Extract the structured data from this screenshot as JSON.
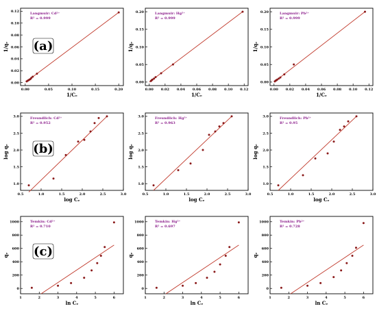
{
  "row_labels": [
    "(a)",
    "(b)",
    "(c)"
  ],
  "chart_data": [
    {
      "type": "scatter",
      "row": 0,
      "col": 0,
      "title": "Langmuir: Cd²⁺",
      "r2": "R² = 0.999",
      "xlabel": "1/Cₑ",
      "ylabel": "1/qₑ",
      "xlim": [
        -0.01,
        0.21
      ],
      "ylim": [
        -0.005,
        0.125
      ],
      "xticks": [
        {
          "v": 0.0,
          "t": "0.00"
        },
        {
          "v": 0.05,
          "t": "0.05"
        },
        {
          "v": 0.1,
          "t": "0.10"
        },
        {
          "v": 0.15,
          "t": "0.15"
        },
        {
          "v": 0.2,
          "t": "0.20"
        }
      ],
      "yticks": [
        {
          "v": 0.0,
          "t": "0.00"
        },
        {
          "v": 0.02,
          "t": "0.02"
        },
        {
          "v": 0.04,
          "t": "0.04"
        },
        {
          "v": 0.06,
          "t": "0.06"
        },
        {
          "v": 0.08,
          "t": "0.08"
        },
        {
          "v": 0.1,
          "t": "0.10"
        },
        {
          "v": 0.12,
          "t": "0.12"
        }
      ],
      "x": [
        0.003,
        0.005,
        0.007,
        0.009,
        0.011,
        0.013,
        0.016,
        0.025,
        0.2
      ],
      "y": [
        0.002,
        0.003,
        0.004,
        0.005,
        0.006,
        0.008,
        0.01,
        0.015,
        0.118
      ],
      "fit": [
        [
          0.003,
          0.002
        ],
        [
          0.2,
          0.118
        ]
      ]
    },
    {
      "type": "scatter",
      "row": 0,
      "col": 1,
      "title": "Langmuir: Hg²⁺",
      "r2": "R² = 0.999",
      "xlabel": "1/Cₑ",
      "ylabel": "1/qₑ",
      "xlim": [
        -0.005,
        0.125
      ],
      "ylim": [
        -0.01,
        0.21
      ],
      "xticks": [
        {
          "v": 0.0,
          "t": "0.00"
        },
        {
          "v": 0.02,
          "t": "0.02"
        },
        {
          "v": 0.04,
          "t": "0.04"
        },
        {
          "v": 0.06,
          "t": "0.06"
        },
        {
          "v": 0.08,
          "t": "0.08"
        },
        {
          "v": 0.1,
          "t": "0.10"
        },
        {
          "v": 0.12,
          "t": "0.12"
        }
      ],
      "yticks": [
        {
          "v": 0.0,
          "t": "0.00"
        },
        {
          "v": 0.05,
          "t": "0.05"
        },
        {
          "v": 0.1,
          "t": "0.10"
        },
        {
          "v": 0.15,
          "t": "0.15"
        },
        {
          "v": 0.2,
          "t": "0.20"
        }
      ],
      "x": [
        0.002,
        0.003,
        0.004,
        0.006,
        0.008,
        0.015,
        0.03,
        0.118
      ],
      "y": [
        0.003,
        0.005,
        0.007,
        0.01,
        0.014,
        0.025,
        0.05,
        0.2
      ],
      "fit": [
        [
          0.0,
          0.0
        ],
        [
          0.118,
          0.2
        ]
      ]
    },
    {
      "type": "scatter",
      "row": 0,
      "col": 2,
      "title": "Langmuir: Pb²⁺",
      "r2": "R² = 0.999",
      "xlabel": "1/Cₑ",
      "ylabel": "1/qₑ",
      "xlim": [
        -0.005,
        0.125
      ],
      "ylim": [
        -0.01,
        0.21
      ],
      "xticks": [
        {
          "v": 0.0,
          "t": "0.00"
        },
        {
          "v": 0.02,
          "t": "0.02"
        },
        {
          "v": 0.04,
          "t": "0.04"
        },
        {
          "v": 0.06,
          "t": "0.06"
        },
        {
          "v": 0.08,
          "t": "0.08"
        },
        {
          "v": 0.1,
          "t": "0.10"
        },
        {
          "v": 0.12,
          "t": "0.12"
        }
      ],
      "yticks": [
        {
          "v": 0.0,
          "t": "0.00"
        },
        {
          "v": 0.05,
          "t": "0.05"
        },
        {
          "v": 0.1,
          "t": "0.10"
        },
        {
          "v": 0.15,
          "t": "0.15"
        },
        {
          "v": 0.2,
          "t": "0.20"
        }
      ],
      "x": [
        0.001,
        0.002,
        0.003,
        0.004,
        0.006,
        0.008,
        0.013,
        0.025,
        0.115
      ],
      "y": [
        0.002,
        0.004,
        0.005,
        0.007,
        0.01,
        0.013,
        0.022,
        0.05,
        0.2
      ],
      "fit": [
        [
          0.0,
          0.0
        ],
        [
          0.115,
          0.2
        ]
      ]
    },
    {
      "type": "scatter",
      "row": 1,
      "col": 0,
      "title": "Freundlich: Cd²⁺",
      "r2": "R² = 0.952",
      "xlabel": "log Cₑ",
      "ylabel": "log qₑ",
      "xlim": [
        0.5,
        3.0
      ],
      "ylim": [
        0.8,
        3.1
      ],
      "xticks": [
        {
          "v": 0.5,
          "t": "0.5"
        },
        {
          "v": 1.0,
          "t": "1.0"
        },
        {
          "v": 1.5,
          "t": "1.5"
        },
        {
          "v": 2.0,
          "t": "2.0"
        },
        {
          "v": 2.5,
          "t": "2.5"
        },
        {
          "v": 3.0,
          "t": "3.0"
        }
      ],
      "yticks": [
        {
          "v": 1.0,
          "t": "1.0"
        },
        {
          "v": 1.5,
          "t": "1.5"
        },
        {
          "v": 2.0,
          "t": "2.0"
        },
        {
          "v": 2.5,
          "t": "2.5"
        },
        {
          "v": 3.0,
          "t": "3.0"
        }
      ],
      "x": [
        0.7,
        1.3,
        1.6,
        1.9,
        2.05,
        2.2,
        2.3,
        2.4,
        2.6
      ],
      "y": [
        0.95,
        1.15,
        1.85,
        2.25,
        2.3,
        2.55,
        2.8,
        2.95,
        3.0
      ],
      "fit": [
        [
          0.7,
          0.75
        ],
        [
          2.6,
          3.0
        ]
      ]
    },
    {
      "type": "scatter",
      "row": 1,
      "col": 1,
      "title": "Freundlich: Hg²⁺",
      "r2": "R² = 0.963",
      "xlabel": "log Cₑ",
      "ylabel": "log qₑ",
      "xlim": [
        0.5,
        3.0
      ],
      "ylim": [
        0.8,
        3.1
      ],
      "xticks": [
        {
          "v": 0.5,
          "t": "0.5"
        },
        {
          "v": 1.0,
          "t": "1.0"
        },
        {
          "v": 1.5,
          "t": "1.5"
        },
        {
          "v": 2.0,
          "t": "2.0"
        },
        {
          "v": 2.5,
          "t": "2.5"
        },
        {
          "v": 3.0,
          "t": "3.0"
        }
      ],
      "yticks": [
        {
          "v": 1.0,
          "t": "1.0"
        },
        {
          "v": 1.5,
          "t": "1.5"
        },
        {
          "v": 2.0,
          "t": "2.0"
        },
        {
          "v": 2.5,
          "t": "2.5"
        },
        {
          "v": 3.0,
          "t": "3.0"
        }
      ],
      "x": [
        0.7,
        1.3,
        1.6,
        1.9,
        2.05,
        2.2,
        2.3,
        2.4,
        2.6
      ],
      "y": [
        0.95,
        1.4,
        1.6,
        2.0,
        2.45,
        2.55,
        2.7,
        2.8,
        3.0
      ],
      "fit": [
        [
          0.7,
          0.8
        ],
        [
          2.6,
          3.0
        ]
      ]
    },
    {
      "type": "scatter",
      "row": 1,
      "col": 2,
      "title": "Freundlich: Pb²⁺",
      "r2": "R² = 0.95",
      "xlabel": "log Cₑ",
      "ylabel": "log qₑ",
      "xlim": [
        0.5,
        3.0
      ],
      "ylim": [
        0.8,
        3.1
      ],
      "xticks": [
        {
          "v": 0.5,
          "t": "0.5"
        },
        {
          "v": 1.0,
          "t": "1.0"
        },
        {
          "v": 1.5,
          "t": "1.5"
        },
        {
          "v": 2.0,
          "t": "2.0"
        },
        {
          "v": 2.5,
          "t": "2.5"
        },
        {
          "v": 3.0,
          "t": "3.0"
        }
      ],
      "yticks": [
        {
          "v": 1.0,
          "t": "1.0"
        },
        {
          "v": 1.5,
          "t": "1.5"
        },
        {
          "v": 2.0,
          "t": "2.0"
        },
        {
          "v": 2.5,
          "t": "2.5"
        },
        {
          "v": 3.0,
          "t": "3.0"
        }
      ],
      "x": [
        0.7,
        1.3,
        1.6,
        1.9,
        2.05,
        2.2,
        2.3,
        2.4,
        2.6
      ],
      "y": [
        0.95,
        1.25,
        1.75,
        1.9,
        2.25,
        2.6,
        2.7,
        2.85,
        3.0
      ],
      "fit": [
        [
          0.7,
          0.8
        ],
        [
          2.6,
          3.0
        ]
      ]
    },
    {
      "type": "scatter",
      "row": 2,
      "col": 0,
      "title": "Temkin: Cd²⁺",
      "r2": "R² = 0.710",
      "xlabel": "ln Cₑ",
      "ylabel": "qₑ",
      "xlim": [
        1,
        6.5
      ],
      "ylim": [
        -80,
        1080
      ],
      "xticks": [
        {
          "v": 1,
          "t": "1"
        },
        {
          "v": 2,
          "t": "2"
        },
        {
          "v": 3,
          "t": "3"
        },
        {
          "v": 4,
          "t": "4"
        },
        {
          "v": 5,
          "t": "5"
        },
        {
          "v": 6,
          "t": "6"
        }
      ],
      "yticks": [
        {
          "v": 0,
          "t": "0"
        },
        {
          "v": 200,
          "t": "200"
        },
        {
          "v": 400,
          "t": "400"
        },
        {
          "v": 600,
          "t": "600"
        },
        {
          "v": 800,
          "t": "800"
        },
        {
          "v": 1000,
          "t": "1000"
        }
      ],
      "x": [
        1.6,
        3.0,
        3.7,
        4.4,
        4.8,
        5.1,
        5.3,
        5.5,
        6.0
      ],
      "y": [
        10,
        40,
        80,
        160,
        270,
        380,
        490,
        620,
        990
      ],
      "fit": [
        [
          2.1,
          -80
        ],
        [
          6.0,
          650
        ]
      ]
    },
    {
      "type": "scatter",
      "row": 2,
      "col": 1,
      "title": "Temkin: Hg²⁺",
      "r2": "R² = 0.697",
      "xlabel": "ln Cₑ",
      "ylabel": "qₑ",
      "xlim": [
        1,
        6.5
      ],
      "ylim": [
        -80,
        1080
      ],
      "xticks": [
        {
          "v": 1,
          "t": "1"
        },
        {
          "v": 2,
          "t": "2"
        },
        {
          "v": 3,
          "t": "3"
        },
        {
          "v": 4,
          "t": "4"
        },
        {
          "v": 5,
          "t": "5"
        },
        {
          "v": 6,
          "t": "6"
        }
      ],
      "yticks": [
        {
          "v": 0,
          "t": "0"
        },
        {
          "v": 200,
          "t": "200"
        },
        {
          "v": 400,
          "t": "400"
        },
        {
          "v": 600,
          "t": "600"
        },
        {
          "v": 800,
          "t": "800"
        },
        {
          "v": 1000,
          "t": "1000"
        }
      ],
      "x": [
        1.6,
        3.0,
        3.7,
        4.3,
        4.7,
        5.0,
        5.3,
        5.5,
        6.0
      ],
      "y": [
        10,
        40,
        80,
        160,
        250,
        360,
        490,
        620,
        990
      ],
      "fit": [
        [
          2.1,
          -80
        ],
        [
          6.0,
          650
        ]
      ]
    },
    {
      "type": "scatter",
      "row": 2,
      "col": 2,
      "title": "Temkin: Pb²⁺",
      "r2": "R² = 0.728",
      "xlabel": "ln Cₑ",
      "ylabel": "qₑ",
      "xlim": [
        1,
        6.5
      ],
      "ylim": [
        -80,
        1080
      ],
      "xticks": [
        {
          "v": 1,
          "t": "1"
        },
        {
          "v": 2,
          "t": "2"
        },
        {
          "v": 3,
          "t": "3"
        },
        {
          "v": 4,
          "t": "4"
        },
        {
          "v": 5,
          "t": "5"
        },
        {
          "v": 6,
          "t": "6"
        }
      ],
      "yticks": [
        {
          "v": 0,
          "t": "0"
        },
        {
          "v": 200,
          "t": "200"
        },
        {
          "v": 400,
          "t": "400"
        },
        {
          "v": 600,
          "t": "600"
        },
        {
          "v": 800,
          "t": "800"
        },
        {
          "v": 1000,
          "t": "1000"
        }
      ],
      "x": [
        1.6,
        3.0,
        3.7,
        4.4,
        4.8,
        5.1,
        5.4,
        5.6,
        6.0
      ],
      "y": [
        10,
        40,
        80,
        170,
        270,
        380,
        490,
        610,
        980
      ],
      "fit": [
        [
          2.1,
          -80
        ],
        [
          6.0,
          650
        ]
      ]
    }
  ],
  "colors": {
    "marker": "#8b1a1a",
    "fit_line": "#c0392b",
    "annotation": "#8b1d8b",
    "axis": "#000000"
  }
}
